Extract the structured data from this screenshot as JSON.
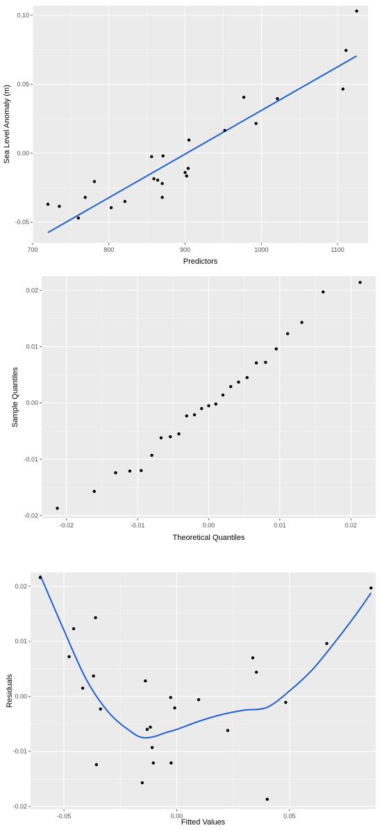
{
  "theme": {
    "panel_bg": "#ebebeb",
    "grid_color": "#ffffff",
    "point_color": "#000000",
    "line_color": "#1f5fd6"
  },
  "chart_data": [
    {
      "type": "scatter",
      "xlabel": "Predictors",
      "ylabel": "Sea Level Anomaly (m)",
      "xlim": [
        700,
        1140
      ],
      "ylim": [
        -0.065,
        0.107
      ],
      "xticks": [
        700,
        800,
        900,
        1000,
        1100
      ],
      "xtick_labels": [
        "700",
        "800",
        "900",
        "1000",
        "1100"
      ],
      "yticks": [
        -0.05,
        0.0,
        0.05,
        0.1
      ],
      "ytick_labels": [
        "-0.05",
        "0.00",
        "0.05",
        "0.10"
      ],
      "grid": true,
      "points": {
        "x": [
          720,
          735,
          760,
          769,
          781,
          803,
          821,
          856,
          859,
          864,
          870,
          870,
          871,
          900,
          902,
          904,
          905,
          952,
          977,
          993,
          1021,
          1107,
          1111,
          1125
        ],
        "y": [
          -0.037,
          -0.0385,
          -0.047,
          -0.032,
          -0.0205,
          -0.0395,
          -0.035,
          -0.0025,
          -0.0185,
          -0.0195,
          -0.022,
          -0.032,
          -0.002,
          -0.014,
          -0.0165,
          -0.011,
          0.0095,
          0.0165,
          0.0405,
          0.0215,
          0.0395,
          0.0465,
          0.0745,
          0.103
        ]
      },
      "line": {
        "x": [
          720,
          1125
        ],
        "y": [
          -0.0575,
          0.0705
        ]
      }
    },
    {
      "type": "scatter",
      "xlabel": "Theoretical Quantiles",
      "ylabel": "Sample Quantiles",
      "xlim": [
        -0.0235,
        0.0235
      ],
      "ylim": [
        -0.0205,
        0.0225
      ],
      "xticks": [
        -0.02,
        -0.01,
        0.0,
        0.01,
        0.02
      ],
      "xtick_labels": [
        "-0.02",
        "-0.01",
        "0.00",
        "0.01",
        "0.02"
      ],
      "yticks": [
        -0.02,
        -0.01,
        0.0,
        0.01,
        0.02
      ],
      "ytick_labels": [
        "-0.02",
        "-0.01",
        "0.00",
        "0.01",
        "0.02"
      ],
      "grid": true,
      "points": {
        "x": [
          -0.0213,
          -0.0161,
          -0.0131,
          -0.0111,
          -0.0095,
          -0.008,
          -0.0067,
          -0.0054,
          -0.0042,
          -0.0031,
          -0.002,
          -0.001,
          0.0,
          0.001,
          0.002,
          0.0031,
          0.0042,
          0.0054,
          0.0067,
          0.008,
          0.0095,
          0.0111,
          0.0131,
          0.0161,
          0.0213
        ],
        "y": [
          -0.0187,
          -0.0157,
          -0.0124,
          -0.0121,
          -0.012,
          -0.0093,
          -0.0062,
          -0.006,
          -0.0055,
          -0.0023,
          -0.0021,
          -0.001,
          -0.0005,
          -0.0002,
          0.0014,
          0.0029,
          0.0037,
          0.0045,
          0.0071,
          0.0072,
          0.0096,
          0.0123,
          0.0143,
          0.0197,
          0.0214
        ]
      }
    },
    {
      "type": "scatter",
      "xlabel": "Fitted Values",
      "ylabel": "Residuals",
      "xlim": [
        -0.0648,
        0.0882
      ],
      "ylim": [
        -0.0205,
        0.0225
      ],
      "xticks": [
        -0.05,
        0.0,
        0.05
      ],
      "xtick_labels": [
        "-0.05",
        "0.00",
        "0.05"
      ],
      "yticks": [
        -0.02,
        -0.01,
        0.0,
        0.01,
        0.02
      ],
      "ytick_labels": [
        "-0.02",
        "-0.01",
        "0.00",
        "0.01",
        "0.02"
      ],
      "grid": true,
      "points": {
        "x": [
          -0.0605,
          -0.0477,
          -0.0457,
          -0.0417,
          -0.0369,
          -0.036,
          -0.0356,
          -0.0338,
          -0.0153,
          -0.0139,
          -0.0131,
          -0.0117,
          -0.0109,
          -0.0104,
          -0.0027,
          -0.0025,
          -0.0009,
          0.0097,
          0.0226,
          0.0337,
          0.0353,
          0.0401,
          0.0483,
          0.0665,
          0.0861
        ],
        "y": [
          0.0216,
          0.0072,
          0.0123,
          0.0015,
          0.0037,
          0.0143,
          -0.0124,
          -0.0023,
          -0.0157,
          0.0028,
          -0.006,
          -0.0056,
          -0.0093,
          -0.0121,
          -0.0002,
          -0.0121,
          -0.0021,
          -0.0006,
          -0.0062,
          0.007,
          0.0044,
          -0.0187,
          -0.0011,
          0.0096,
          0.0197
        ]
      },
      "line": {
        "x": [
          -0.0605,
          -0.05,
          -0.04,
          -0.03,
          -0.02,
          -0.015,
          -0.01,
          -0.005,
          0.0,
          0.01,
          0.02,
          0.03,
          0.04,
          0.05,
          0.06,
          0.07,
          0.08,
          0.0861
        ],
        "y": [
          0.022,
          0.012,
          0.003,
          -0.003,
          -0.0065,
          -0.0075,
          -0.0073,
          -0.0066,
          -0.006,
          -0.0045,
          -0.0033,
          -0.0025,
          -0.002,
          0.001,
          0.0048,
          0.0098,
          0.0152,
          0.0188
        ]
      }
    }
  ]
}
